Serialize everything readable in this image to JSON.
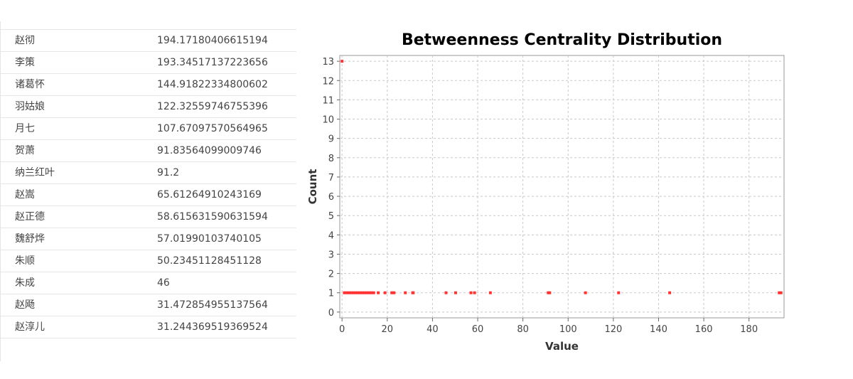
{
  "table": {
    "columns": [
      "name",
      "score"
    ],
    "rows": [
      {
        "name": "赵彻",
        "score": "194.17180406615194"
      },
      {
        "name": "李策",
        "score": "193.34517137223656"
      },
      {
        "name": "诸葛怀",
        "score": "144.91822334800602"
      },
      {
        "name": "羽姑娘",
        "score": "122.32559746755396"
      },
      {
        "name": "月七",
        "score": "107.67097570564965"
      },
      {
        "name": "贺萧",
        "score": "91.83564099009746"
      },
      {
        "name": "纳兰红叶",
        "score": "91.2"
      },
      {
        "name": "赵嵩",
        "score": "65.61264910243169"
      },
      {
        "name": "赵正德",
        "score": "58.615631590631594"
      },
      {
        "name": "魏舒烨",
        "score": "57.01990103740105"
      },
      {
        "name": "朱顺",
        "score": "50.23451128451128"
      },
      {
        "name": "朱成",
        "score": "46"
      },
      {
        "name": "赵飏",
        "score": "31.472854955137564"
      },
      {
        "name": "赵淳儿",
        "score": "31.244369519369524"
      }
    ]
  },
  "chart_data": {
    "type": "scatter",
    "title": "Betweenness Centrality Distribution",
    "xlabel": "Value",
    "ylabel": "Count",
    "xlim": [
      -1,
      195.5
    ],
    "ylim": [
      -0.3,
      13.3
    ],
    "xticks": [
      0,
      20,
      40,
      60,
      80,
      100,
      120,
      140,
      160,
      180
    ],
    "yticks": [
      0,
      1,
      2,
      3,
      4,
      5,
      6,
      7,
      8,
      9,
      10,
      11,
      12,
      13
    ],
    "grid": true,
    "marker_color": "#ff3333",
    "points": [
      {
        "x": 0,
        "y": 13
      },
      {
        "x": 1,
        "y": 1
      },
      {
        "x": 2,
        "y": 1
      },
      {
        "x": 3,
        "y": 1
      },
      {
        "x": 4,
        "y": 1
      },
      {
        "x": 5,
        "y": 1
      },
      {
        "x": 6,
        "y": 1
      },
      {
        "x": 7,
        "y": 1
      },
      {
        "x": 8,
        "y": 1
      },
      {
        "x": 9,
        "y": 1
      },
      {
        "x": 10,
        "y": 1
      },
      {
        "x": 11,
        "y": 1
      },
      {
        "x": 12,
        "y": 1
      },
      {
        "x": 13,
        "y": 1
      },
      {
        "x": 14,
        "y": 1
      },
      {
        "x": 16,
        "y": 1
      },
      {
        "x": 19,
        "y": 1
      },
      {
        "x": 22,
        "y": 1
      },
      {
        "x": 23,
        "y": 1
      },
      {
        "x": 28,
        "y": 1
      },
      {
        "x": 31.24,
        "y": 1
      },
      {
        "x": 31.47,
        "y": 1
      },
      {
        "x": 46,
        "y": 1
      },
      {
        "x": 50.23,
        "y": 1
      },
      {
        "x": 57.02,
        "y": 1
      },
      {
        "x": 58.62,
        "y": 1
      },
      {
        "x": 65.61,
        "y": 1
      },
      {
        "x": 91.2,
        "y": 1
      },
      {
        "x": 91.84,
        "y": 1
      },
      {
        "x": 107.67,
        "y": 1
      },
      {
        "x": 122.33,
        "y": 1
      },
      {
        "x": 144.92,
        "y": 1
      },
      {
        "x": 193.35,
        "y": 1
      },
      {
        "x": 194.17,
        "y": 1
      }
    ]
  }
}
